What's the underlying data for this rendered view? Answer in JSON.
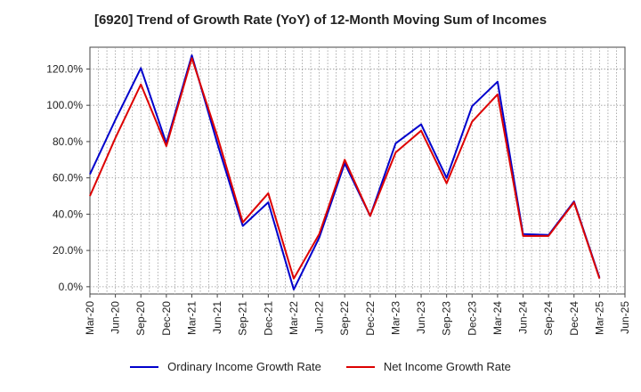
{
  "chart_data": {
    "type": "line",
    "title": "[6920]  Trend of Growth Rate (YoY) of 12-Month Moving Sum of Incomes",
    "xlabel": "",
    "ylabel": "",
    "x_ticks": [
      "Mar-20",
      "Jun-20",
      "Sep-20",
      "Dec-20",
      "Mar-21",
      "Jun-21",
      "Sep-21",
      "Dec-21",
      "Mar-22",
      "Jun-22",
      "Sep-22",
      "Dec-22",
      "Mar-23",
      "Jun-23",
      "Sep-23",
      "Dec-23",
      "Mar-24",
      "Jun-24",
      "Sep-24",
      "Dec-24",
      "Mar-25",
      "Jun-25"
    ],
    "y_ticks": [
      "0.0%",
      "20.0%",
      "40.0%",
      "60.0%",
      "80.0%",
      "100.0%",
      "120.0%"
    ],
    "y_tick_values": [
      0,
      20,
      40,
      60,
      80,
      100,
      120
    ],
    "ylim": [
      -4,
      132
    ],
    "x_months": [
      "2020-03",
      "2020-04",
      "2020-05",
      "2020-06",
      "2020-07",
      "2020-08",
      "2020-09",
      "2020-10",
      "2020-11",
      "2020-12",
      "2021-01",
      "2021-02",
      "2021-03",
      "2021-04",
      "2021-05",
      "2021-06",
      "2021-07",
      "2021-08",
      "2021-09",
      "2021-10",
      "2021-11",
      "2021-12",
      "2022-01",
      "2022-02",
      "2022-03",
      "2022-04",
      "2022-05",
      "2022-06",
      "2022-07",
      "2022-08",
      "2022-09",
      "2022-10",
      "2022-11",
      "2022-12",
      "2023-01",
      "2023-02",
      "2023-03",
      "2023-04",
      "2023-05",
      "2023-06",
      "2023-07",
      "2023-08",
      "2023-09",
      "2023-10",
      "2023-11",
      "2023-12",
      "2024-01",
      "2024-02",
      "2024-03",
      "2024-04",
      "2024-05",
      "2024-06",
      "2024-07",
      "2024-08",
      "2024-09",
      "2024-10",
      "2024-11",
      "2024-12",
      "2025-01",
      "2025-02",
      "2025-03",
      "2025-04",
      "2025-05",
      "2025-06"
    ],
    "grid": true,
    "legend_position": "bottom",
    "series": [
      {
        "name": "Ordinary Income Growth Rate",
        "color": "#0000cc",
        "points": [
          [
            "2020-03",
            62
          ],
          [
            "2020-06",
            92
          ],
          [
            "2020-09",
            120.5
          ],
          [
            "2020-12",
            79
          ],
          [
            "2021-03",
            127.5
          ],
          [
            "2021-06",
            79
          ],
          [
            "2021-09",
            33.5
          ],
          [
            "2021-12",
            46.5
          ],
          [
            "2022-03",
            -1.5
          ],
          [
            "2022-06",
            27
          ],
          [
            "2022-09",
            68
          ],
          [
            "2022-12",
            39
          ],
          [
            "2023-03",
            79
          ],
          [
            "2023-06",
            89.5
          ],
          [
            "2023-09",
            60
          ],
          [
            "2023-12",
            99.5
          ],
          [
            "2024-03",
            113
          ],
          [
            "2024-06",
            29
          ],
          [
            "2024-09",
            28.5
          ],
          [
            "2024-12",
            47
          ],
          [
            "2025-03",
            5
          ]
        ]
      },
      {
        "name": "Net Income Growth Rate",
        "color": "#dd0000",
        "points": [
          [
            "2020-03",
            50
          ],
          [
            "2020-06",
            82
          ],
          [
            "2020-09",
            111.5
          ],
          [
            "2020-12",
            77.5
          ],
          [
            "2021-03",
            126
          ],
          [
            "2021-06",
            83
          ],
          [
            "2021-09",
            35.5
          ],
          [
            "2021-12",
            51.5
          ],
          [
            "2022-03",
            4.5
          ],
          [
            "2022-06",
            29
          ],
          [
            "2022-09",
            70
          ],
          [
            "2022-12",
            39
          ],
          [
            "2023-03",
            74
          ],
          [
            "2023-06",
            86
          ],
          [
            "2023-09",
            57
          ],
          [
            "2023-12",
            91
          ],
          [
            "2024-03",
            106
          ],
          [
            "2024-06",
            28
          ],
          [
            "2024-09",
            28
          ],
          [
            "2024-12",
            46.5
          ],
          [
            "2025-03",
            4.5
          ]
        ]
      }
    ]
  }
}
